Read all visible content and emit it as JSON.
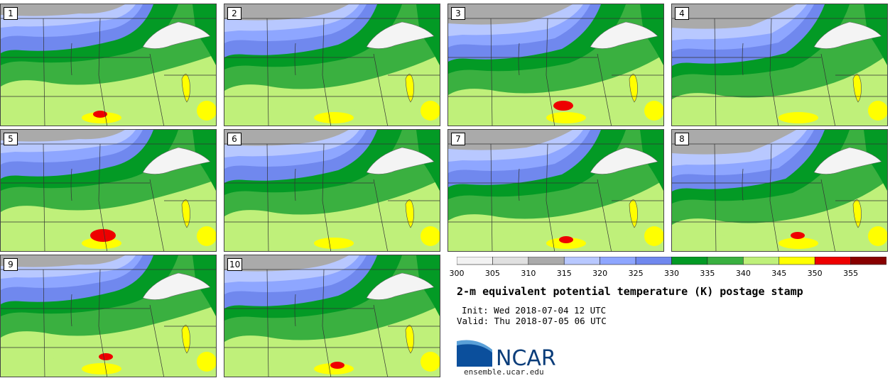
{
  "panels": [
    {
      "label": "1",
      "warm_core": "low"
    },
    {
      "label": "2",
      "warm_core": "none"
    },
    {
      "label": "3",
      "warm_core": "medium"
    },
    {
      "label": "4",
      "warm_core": "none"
    },
    {
      "label": "5",
      "warm_core": "high"
    },
    {
      "label": "6",
      "warm_core": "none"
    },
    {
      "label": "7",
      "warm_core": "low"
    },
    {
      "label": "8",
      "warm_core": "low"
    },
    {
      "label": "9",
      "warm_core": "low"
    },
    {
      "label": "10",
      "warm_core": "low"
    }
  ],
  "colorbar": {
    "ticks": [
      "300",
      "305",
      "310",
      "315",
      "320",
      "325",
      "330",
      "335",
      "340",
      "345",
      "350",
      "355"
    ],
    "colors": [
      "#f2f2f2",
      "#e0e0e0",
      "#aaaaaa",
      "#b8c8ff",
      "#8ea6ff",
      "#7088ee",
      "#039a25",
      "#3ab040",
      "#bff07a",
      "#ffff00",
      "#ee0000",
      "#880000"
    ]
  },
  "title": "2-m equivalent potential temperature (K) postage stamp",
  "init": "Init: Wed 2018-07-04 12 UTC",
  "valid": "Valid: Thu 2018-07-05 06 UTC",
  "logo": {
    "text": "NCAR",
    "url": "ensemble.ucar.edu"
  }
}
